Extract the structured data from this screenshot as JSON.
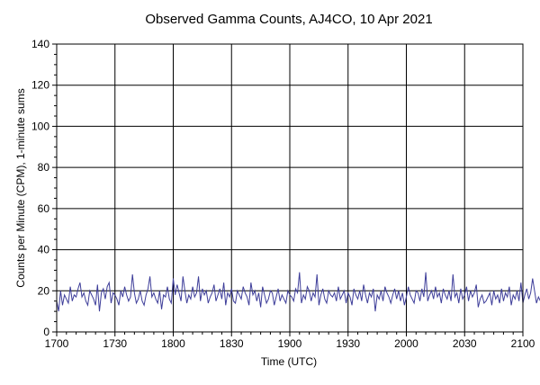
{
  "chart_data": {
    "type": "line",
    "title": "Observed Gamma Counts, AJ4CO, 10 Apr 2021",
    "xlabel": "Time (UTC)",
    "ylabel": "Counts per Minute (CPM), 1-minute sums",
    "x_tick_labels": [
      "1700",
      "1730",
      "1800",
      "1830",
      "1900",
      "1930",
      "2000",
      "2030",
      "2100"
    ],
    "y_tick_labels": [
      "0",
      "20",
      "40",
      "60",
      "80",
      "100",
      "120",
      "140"
    ],
    "xlim": [
      0,
      240
    ],
    "ylim": [
      0,
      140
    ],
    "x_minutes_start": 0,
    "x_minutes_step": 1,
    "grid": true,
    "line_color": "#3d3d99",
    "grid_color": "#000000",
    "reference_line": 20,
    "series": [
      {
        "values": [
          15,
          10,
          20,
          13,
          18,
          16,
          14,
          22,
          15,
          18,
          17,
          21,
          24,
          17,
          19,
          15,
          13,
          20,
          18,
          16,
          13,
          23,
          10,
          19,
          21,
          16,
          22,
          24,
          14,
          19,
          18,
          16,
          13,
          20,
          17,
          22,
          18,
          15,
          17,
          28,
          19,
          14,
          16,
          20,
          15,
          13,
          18,
          21,
          27,
          17,
          19,
          16,
          14,
          20,
          11,
          18,
          17,
          22,
          16,
          14,
          26,
          18,
          23,
          19,
          15,
          27,
          20,
          14,
          18,
          16,
          22,
          17,
          19,
          27,
          15,
          21,
          18,
          20,
          14,
          17,
          19,
          23,
          15,
          18,
          21,
          16,
          24,
          13,
          19,
          17,
          21,
          15,
          14,
          20,
          18,
          16,
          22,
          19,
          17,
          13,
          24,
          18,
          20,
          15,
          19,
          12,
          22,
          18,
          14,
          16,
          20,
          19,
          13,
          17,
          21,
          15,
          18,
          16,
          14,
          20,
          18,
          17,
          15,
          21,
          19,
          29,
          14,
          18,
          16,
          22,
          20,
          15,
          19,
          17,
          28,
          13,
          18,
          21,
          16,
          14,
          20,
          18,
          17,
          19,
          15,
          22,
          16,
          18,
          20,
          14,
          19,
          17,
          13,
          21,
          18,
          16,
          20,
          15,
          23,
          18,
          14,
          19,
          17,
          21,
          10,
          18,
          16,
          20,
          15,
          22,
          19,
          17,
          14,
          18,
          21,
          16,
          20,
          15,
          19,
          13,
          17,
          22,
          18,
          16,
          14,
          20,
          19,
          15,
          21,
          17,
          29,
          15,
          18,
          20,
          16,
          22,
          17,
          19,
          14,
          21,
          18,
          16,
          20,
          15,
          28,
          17,
          19,
          14,
          21,
          16,
          18,
          22,
          15,
          20,
          17,
          19,
          23,
          12,
          16,
          18,
          14,
          15,
          17,
          19,
          13,
          20,
          16,
          18,
          14,
          21,
          15,
          19,
          17,
          22,
          13,
          18,
          16,
          20,
          15,
          24,
          14,
          18,
          21,
          16,
          19,
          26,
          20,
          14,
          17,
          15
        ]
      }
    ]
  }
}
